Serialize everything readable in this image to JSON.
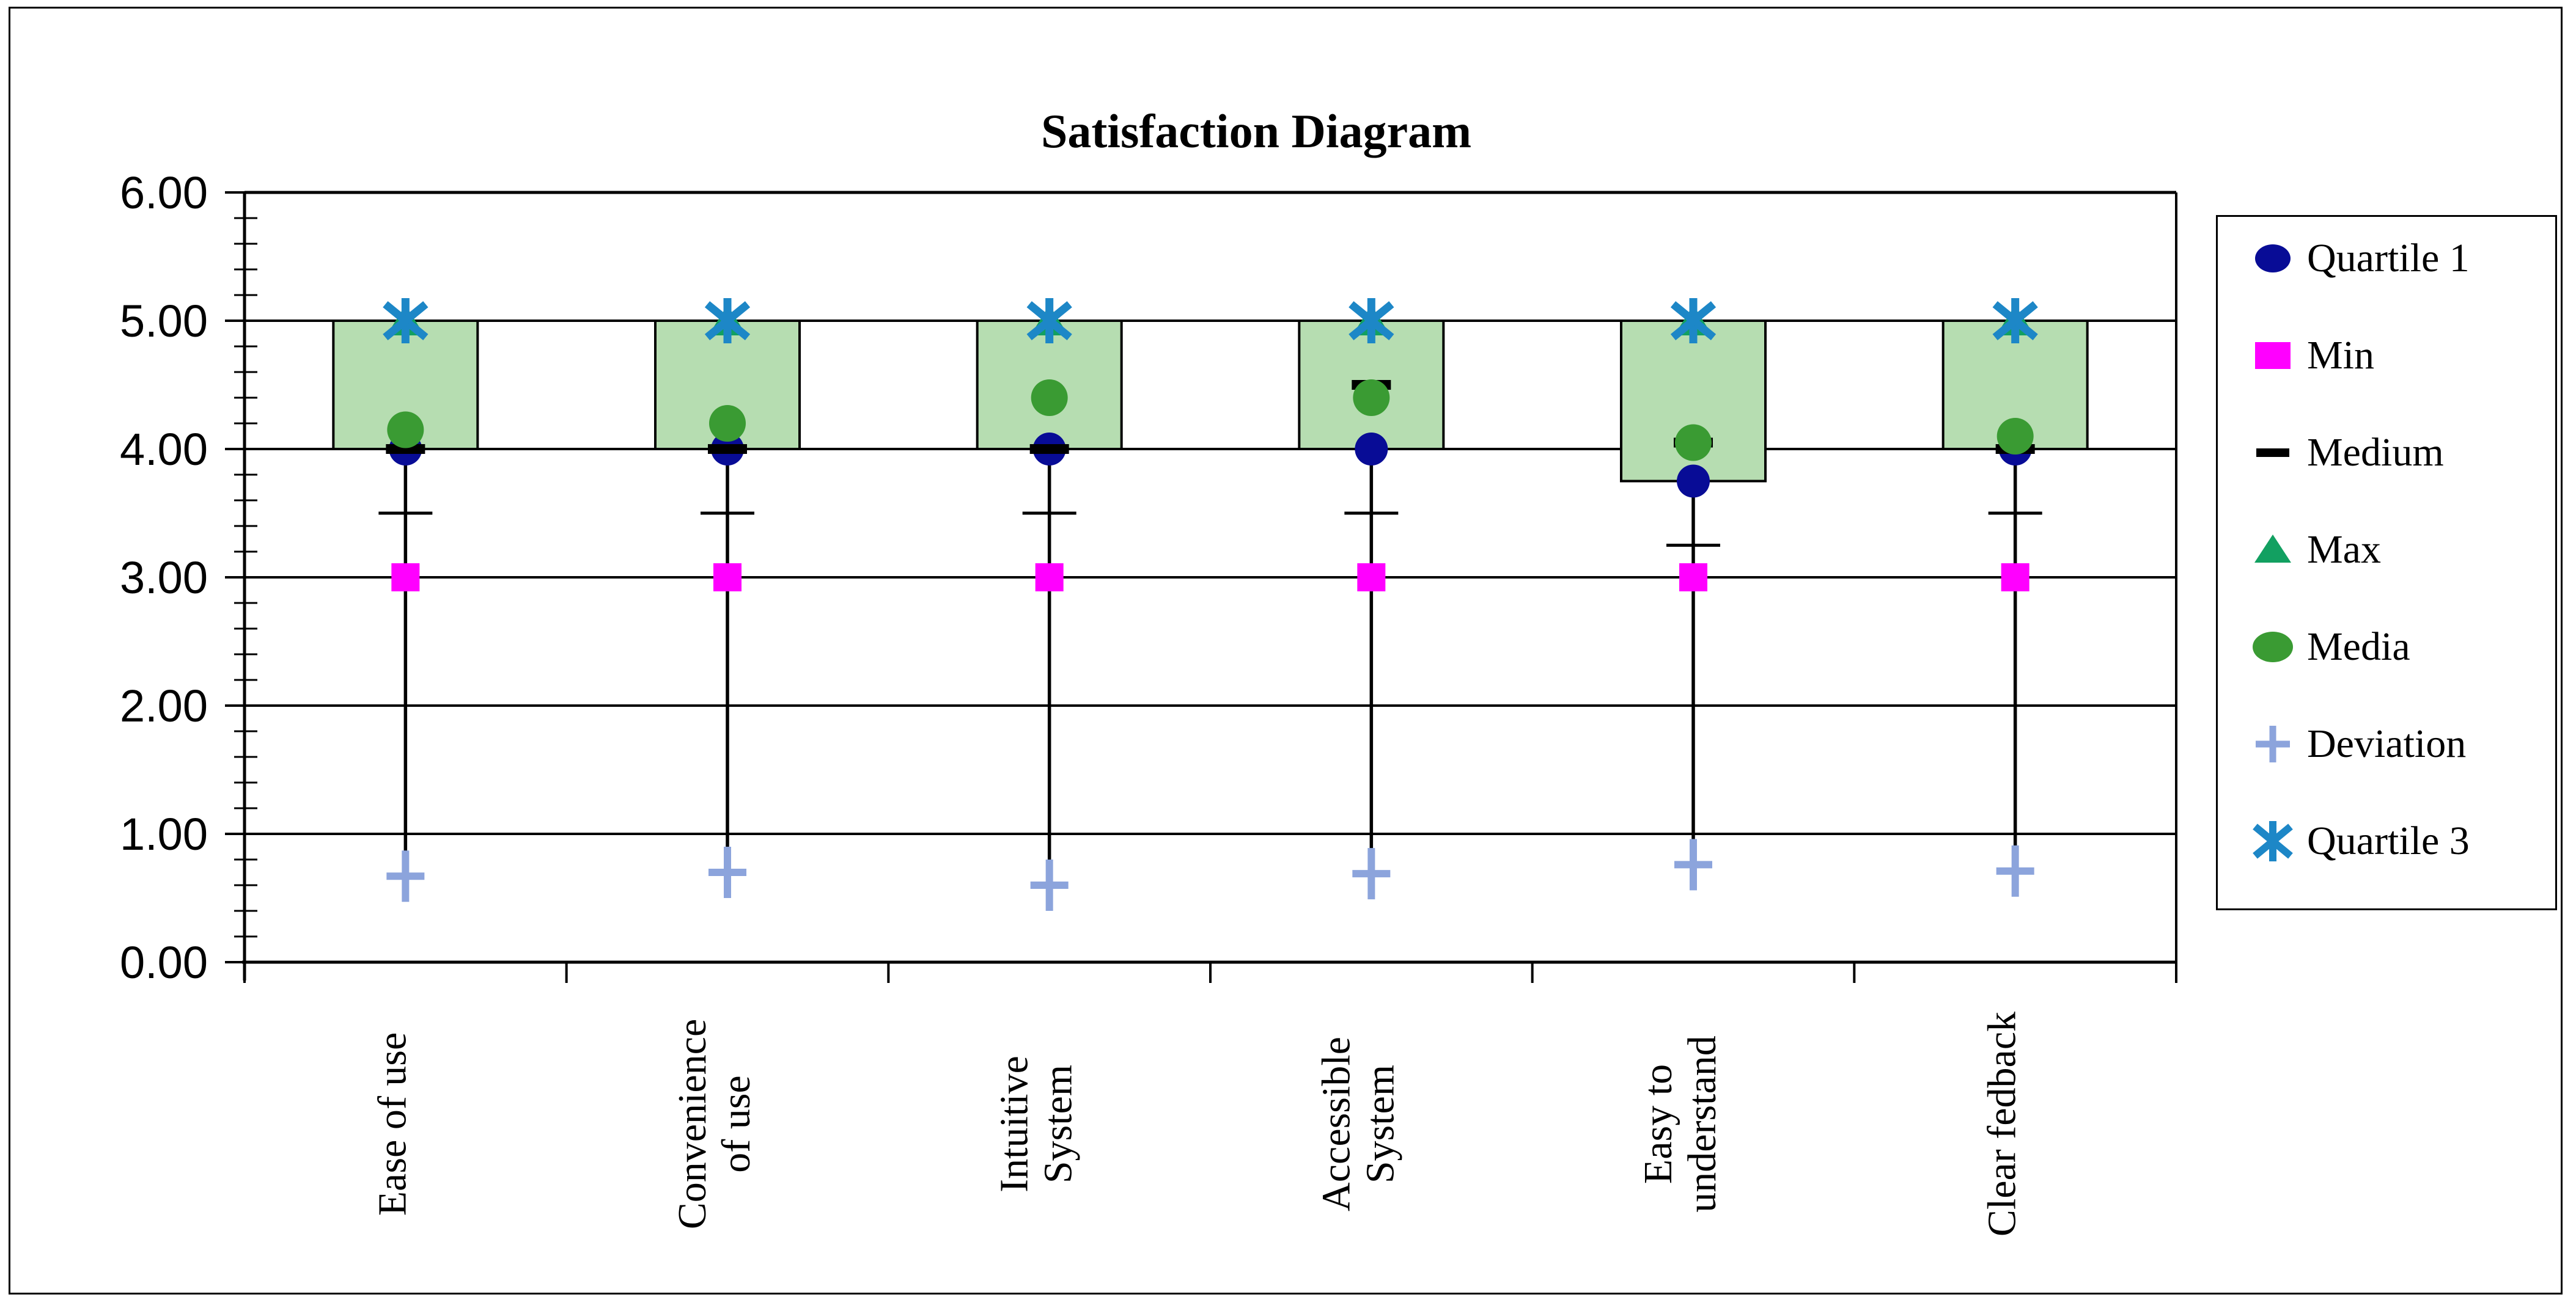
{
  "title": "Satisfaction Diagram",
  "chart_data": {
    "type": "bar",
    "subtype": "excel-box-marker-composite",
    "title": "Satisfaction Diagram",
    "categories": [
      "Ease of use",
      "Convenience of use",
      "Intuitive System",
      "Accessible System",
      "Easy to understand",
      "Clear fedback"
    ],
    "category_label_lines": [
      [
        "Ease of use"
      ],
      [
        "Convenience",
        "of use"
      ],
      [
        "Intuitive",
        "System"
      ],
      [
        "Accessible",
        "System"
      ],
      [
        "Easy to",
        "understand"
      ],
      [
        "Clear fedback"
      ]
    ],
    "series": [
      {
        "name": "Quartile 1",
        "marker": "navy-circle",
        "color": "#080c96",
        "values": [
          4.0,
          4.0,
          4.0,
          4.0,
          3.75,
          4.0
        ]
      },
      {
        "name": "Min",
        "marker": "magenta-square",
        "color": "#ff00ff",
        "values": [
          3.0,
          3.0,
          3.0,
          3.0,
          3.0,
          3.0
        ]
      },
      {
        "name": "Medium",
        "marker": "black-dash",
        "color": "#000000",
        "values": [
          4.0,
          4.0,
          4.0,
          4.5,
          4.05,
          4.0
        ]
      },
      {
        "name": "Max",
        "marker": "green-triangle",
        "color": "#12a061",
        "values": [
          5.0,
          5.0,
          5.0,
          5.0,
          5.0,
          5.0
        ]
      },
      {
        "name": "Media",
        "marker": "green-circle",
        "color": "#3a9b33",
        "values": [
          4.15,
          4.2,
          4.4,
          4.4,
          4.05,
          4.1
        ]
      },
      {
        "name": "Deviation",
        "marker": "periwinkle-plus",
        "color": "#8ca4dc",
        "values": [
          0.67,
          0.7,
          0.6,
          0.69,
          0.76,
          0.71
        ]
      },
      {
        "name": "Quartile 3",
        "marker": "blue-asterisk",
        "color": "#1d87c7",
        "values": [
          5.0,
          5.0,
          5.0,
          5.0,
          5.0,
          5.0
        ]
      }
    ],
    "boxes": {
      "from_series": "Quartile 1",
      "to_series": "Quartile 3",
      "fill": "#b6ddb1",
      "border": "#000000"
    },
    "whiskers": {
      "top_series": "Quartile 1",
      "cap_values": [
        3.5,
        3.5,
        3.5,
        3.5,
        3.25,
        3.5
      ],
      "line_bottom_values": [
        0.8,
        0.82,
        0.47,
        0.82,
        0.87,
        0.84
      ]
    },
    "y_axis": {
      "min": 0,
      "max": 6,
      "major_step": 1,
      "minor_step": 0.2,
      "tick_labels": [
        "0.00",
        "1.00",
        "2.00",
        "3.00",
        "4.00",
        "5.00",
        "6.00"
      ],
      "gridlines": true
    },
    "xlabel": "",
    "ylabel": "",
    "legend_position": "right"
  },
  "legend": {
    "items": [
      {
        "label": "Quartile 1",
        "icon": "navy-circle"
      },
      {
        "label": "Min",
        "icon": "magenta-square"
      },
      {
        "label": "Medium",
        "icon": "black-dash"
      },
      {
        "label": "Max",
        "icon": "green-triangle"
      },
      {
        "label": "Media",
        "icon": "green-circle"
      },
      {
        "label": "Deviation",
        "icon": "periwinkle-plus"
      },
      {
        "label": "Quartile 3",
        "icon": "blue-asterisk"
      }
    ]
  },
  "colors": {
    "box_fill": "#b6ddb1",
    "quartile1": "#080c96",
    "min": "#ff00ff",
    "medium": "#000000",
    "max": "#12a061",
    "media": "#3a9b33",
    "deviation": "#8ca4dc",
    "quartile3": "#1d87c7",
    "grid": "#000000",
    "background": "#ffffff"
  }
}
